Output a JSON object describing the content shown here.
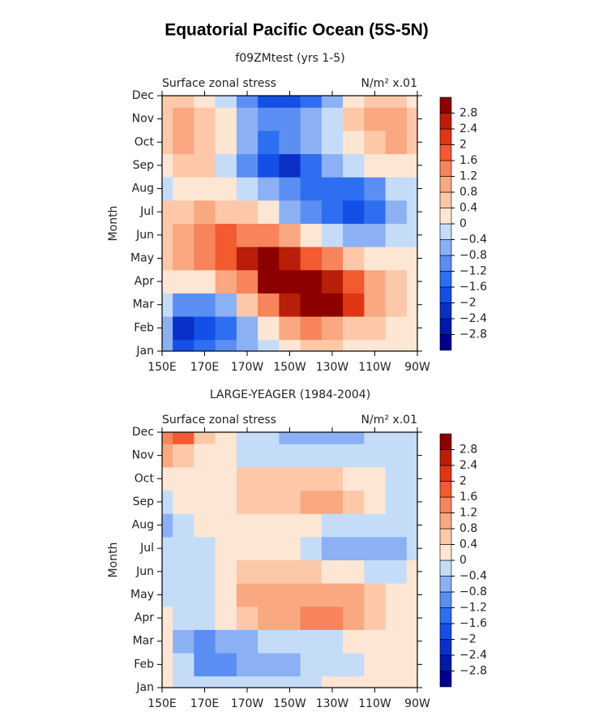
{
  "title": "Equatorial Pacific Ocean (5S-5N)",
  "chart_data": [
    {
      "type": "contour",
      "title": "f09ZMtest (yrs 1-5)",
      "left_label": "Surface zonal stress",
      "right_label": "N/m² x.01",
      "y_label": "Month",
      "x": [
        150,
        160,
        170,
        180,
        190,
        200,
        210,
        220,
        230,
        240,
        250,
        260,
        270
      ],
      "xlim": [
        150,
        270
      ],
      "xticks": [
        {
          "value": 150,
          "label": "150E"
        },
        {
          "value": 170,
          "label": "170E"
        },
        {
          "value": 190,
          "label": "170W"
        },
        {
          "value": 210,
          "label": "150W"
        },
        {
          "value": 230,
          "label": "130W"
        },
        {
          "value": 250,
          "label": "110W"
        },
        {
          "value": 270,
          "label": "90W"
        }
      ],
      "categories": [
        "Jan",
        "Feb",
        "Mar",
        "Apr",
        "May",
        "Jun",
        "Jul",
        "Aug",
        "Sep",
        "Oct",
        "Nov",
        "Dec"
      ],
      "z": [
        [
          -0.6,
          -2.0,
          -1.5,
          -1.0,
          -0.6,
          -0.2,
          0.3,
          0.5,
          0.5,
          0.3,
          0.2,
          0.2,
          0.1
        ],
        [
          -0.8,
          -2.2,
          -2.0,
          -1.4,
          -0.8,
          0.2,
          0.8,
          1.2,
          1.0,
          0.6,
          0.4,
          0.2,
          0.1
        ],
        [
          -0.3,
          -1.0,
          -1.2,
          -0.6,
          0.4,
          1.2,
          2.4,
          3.0,
          3.0,
          2.0,
          1.0,
          0.5,
          0.2
        ],
        [
          0.2,
          0.2,
          0.3,
          0.8,
          1.4,
          2.8,
          3.0,
          3.2,
          2.6,
          1.6,
          0.9,
          0.5,
          0.2
        ],
        [
          0.4,
          0.9,
          1.2,
          1.6,
          2.4,
          3.0,
          2.6,
          1.8,
          1.2,
          0.6,
          0.3,
          0.1,
          0.0
        ],
        [
          0.5,
          1.0,
          1.4,
          1.6,
          1.4,
          1.2,
          0.8,
          0.3,
          -0.2,
          -0.6,
          -0.6,
          -0.4,
          -0.2
        ],
        [
          0.4,
          0.6,
          0.8,
          0.6,
          0.4,
          0.0,
          -0.5,
          -1.0,
          -1.5,
          -2.0,
          -1.6,
          -0.8,
          -0.3
        ],
        [
          -0.2,
          0.2,
          0.3,
          0.1,
          -0.2,
          -0.6,
          -1.0,
          -1.4,
          -1.6,
          -1.4,
          -1.0,
          -0.4,
          -0.1
        ],
        [
          0.3,
          0.6,
          0.4,
          -0.2,
          -1.0,
          -1.8,
          -2.2,
          -1.6,
          -0.8,
          -0.3,
          0.0,
          0.2,
          0.1
        ],
        [
          0.6,
          1.0,
          0.6,
          0.0,
          -0.8,
          -1.4,
          -1.2,
          -0.8,
          -0.2,
          0.2,
          0.6,
          0.9,
          0.5
        ],
        [
          0.6,
          1.0,
          0.6,
          0.0,
          -0.8,
          -1.2,
          -1.2,
          -0.6,
          -0.2,
          0.4,
          0.9,
          1.0,
          0.5
        ],
        [
          0.4,
          0.6,
          0.3,
          -0.2,
          -1.2,
          -2.0,
          -2.0,
          -1.4,
          -0.6,
          0.0,
          0.5,
          0.6,
          0.3
        ]
      ],
      "levels": [
        {
          "value": -2.8,
          "label": "−2.8"
        },
        {
          "value": -2.4,
          "label": "−2.4"
        },
        {
          "value": -2,
          "label": "−2"
        },
        {
          "value": -1.6,
          "label": "−1.6"
        },
        {
          "value": -1.2,
          "label": "−1.2"
        },
        {
          "value": -0.8,
          "label": "−0.8"
        },
        {
          "value": -0.4,
          "label": "−0.4"
        },
        0,
        0.4,
        0.8,
        1.2,
        1.6,
        2,
        2.4,
        2.8
      ],
      "colors": [
        "#00008c",
        "#001aa8",
        "#0a30c8",
        "#1450e6",
        "#2e6ef0",
        "#5a8ef2",
        "#8cb0f4",
        "#c4dcf8",
        "#fde6d4",
        "#fcc8a8",
        "#f9a882",
        "#f7845a",
        "#f25a30",
        "#e03614",
        "#b81e08",
        "#8c0000"
      ]
    },
    {
      "type": "contour",
      "title": "LARGE-YEAGER (1984-2004)",
      "left_label": "Surface zonal stress",
      "right_label": "N/m² x.01",
      "y_label": "Month",
      "x": [
        150,
        160,
        170,
        180,
        190,
        200,
        210,
        220,
        230,
        240,
        250,
        260,
        270
      ],
      "xlim": [
        150,
        270
      ],
      "xticks": [
        {
          "value": 150,
          "label": "150E"
        },
        {
          "value": 170,
          "label": "170E"
        },
        {
          "value": 190,
          "label": "170W"
        },
        {
          "value": 210,
          "label": "150W"
        },
        {
          "value": 230,
          "label": "130W"
        },
        {
          "value": 250,
          "label": "110W"
        },
        {
          "value": 270,
          "label": "90W"
        }
      ],
      "categories": [
        "Jan",
        "Feb",
        "Mar",
        "Apr",
        "May",
        "Jun",
        "Jul",
        "Aug",
        "Sep",
        "Oct",
        "Nov",
        "Dec"
      ],
      "z": [
        [
          0.1,
          -0.2,
          -0.4,
          -0.4,
          -0.3,
          -0.2,
          -0.1,
          -0.1,
          0.0,
          0.1,
          0.2,
          0.1,
          0.0
        ],
        [
          0.1,
          -0.4,
          -0.9,
          -1.0,
          -0.8,
          -0.6,
          -0.6,
          -0.4,
          -0.2,
          -0.1,
          0.1,
          0.1,
          0.0
        ],
        [
          0.0,
          -0.5,
          -0.9,
          -0.8,
          -0.6,
          -0.4,
          -0.4,
          -0.3,
          -0.2,
          0.0,
          0.1,
          0.1,
          0.0
        ],
        [
          0.0,
          -0.2,
          -0.3,
          0.1,
          0.5,
          0.9,
          1.0,
          1.3,
          1.3,
          1.0,
          0.6,
          0.2,
          0.0
        ],
        [
          -0.1,
          -0.2,
          -0.1,
          0.3,
          0.8,
          1.0,
          1.0,
          1.1,
          1.0,
          0.8,
          0.5,
          0.1,
          0.0
        ],
        [
          -0.2,
          -0.3,
          -0.2,
          0.2,
          0.4,
          0.5,
          0.6,
          0.5,
          0.3,
          0.1,
          -0.1,
          -0.1,
          0.0
        ],
        [
          -0.3,
          -0.3,
          -0.1,
          0.1,
          0.1,
          0.1,
          0.0,
          -0.2,
          -0.5,
          -0.6,
          -0.8,
          -0.6,
          -0.2
        ],
        [
          -0.5,
          -0.2,
          0.0,
          0.1,
          0.1,
          0.1,
          0.1,
          0.0,
          -0.2,
          -0.2,
          -0.2,
          -0.4,
          -0.2
        ],
        [
          -0.1,
          0.1,
          0.2,
          0.3,
          0.4,
          0.6,
          0.6,
          0.8,
          0.8,
          0.4,
          0.1,
          -0.1,
          -0.2
        ],
        [
          0.0,
          0.1,
          0.2,
          0.3,
          0.6,
          0.6,
          0.5,
          0.5,
          0.4,
          0.3,
          0.0,
          -0.2,
          -0.2
        ],
        [
          0.8,
          0.4,
          0.2,
          0.0,
          -0.2,
          -0.3,
          -0.4,
          -0.4,
          -0.3,
          -0.2,
          -0.3,
          -0.2,
          -0.1
        ],
        [
          1.4,
          1.6,
          0.4,
          0.1,
          -0.1,
          -0.3,
          -0.5,
          -0.5,
          -0.6,
          -0.6,
          -0.4,
          -0.2,
          -0.1
        ]
      ],
      "levels": [
        {
          "value": -2.8,
          "label": "−2.8"
        },
        {
          "value": -2.4,
          "label": "−2.4"
        },
        {
          "value": -2,
          "label": "−2"
        },
        {
          "value": -1.6,
          "label": "−1.6"
        },
        {
          "value": -1.2,
          "label": "−1.2"
        },
        {
          "value": -0.8,
          "label": "−0.8"
        },
        {
          "value": -0.4,
          "label": "−0.4"
        },
        0,
        0.4,
        0.8,
        1.2,
        1.6,
        2,
        2.4,
        2.8
      ],
      "colors": [
        "#00008c",
        "#001aa8",
        "#0a30c8",
        "#1450e6",
        "#2e6ef0",
        "#5a8ef2",
        "#8cb0f4",
        "#c4dcf8",
        "#fde6d4",
        "#fcc8a8",
        "#f9a882",
        "#f7845a",
        "#f25a30",
        "#e03614",
        "#b81e08",
        "#8c0000"
      ]
    }
  ]
}
